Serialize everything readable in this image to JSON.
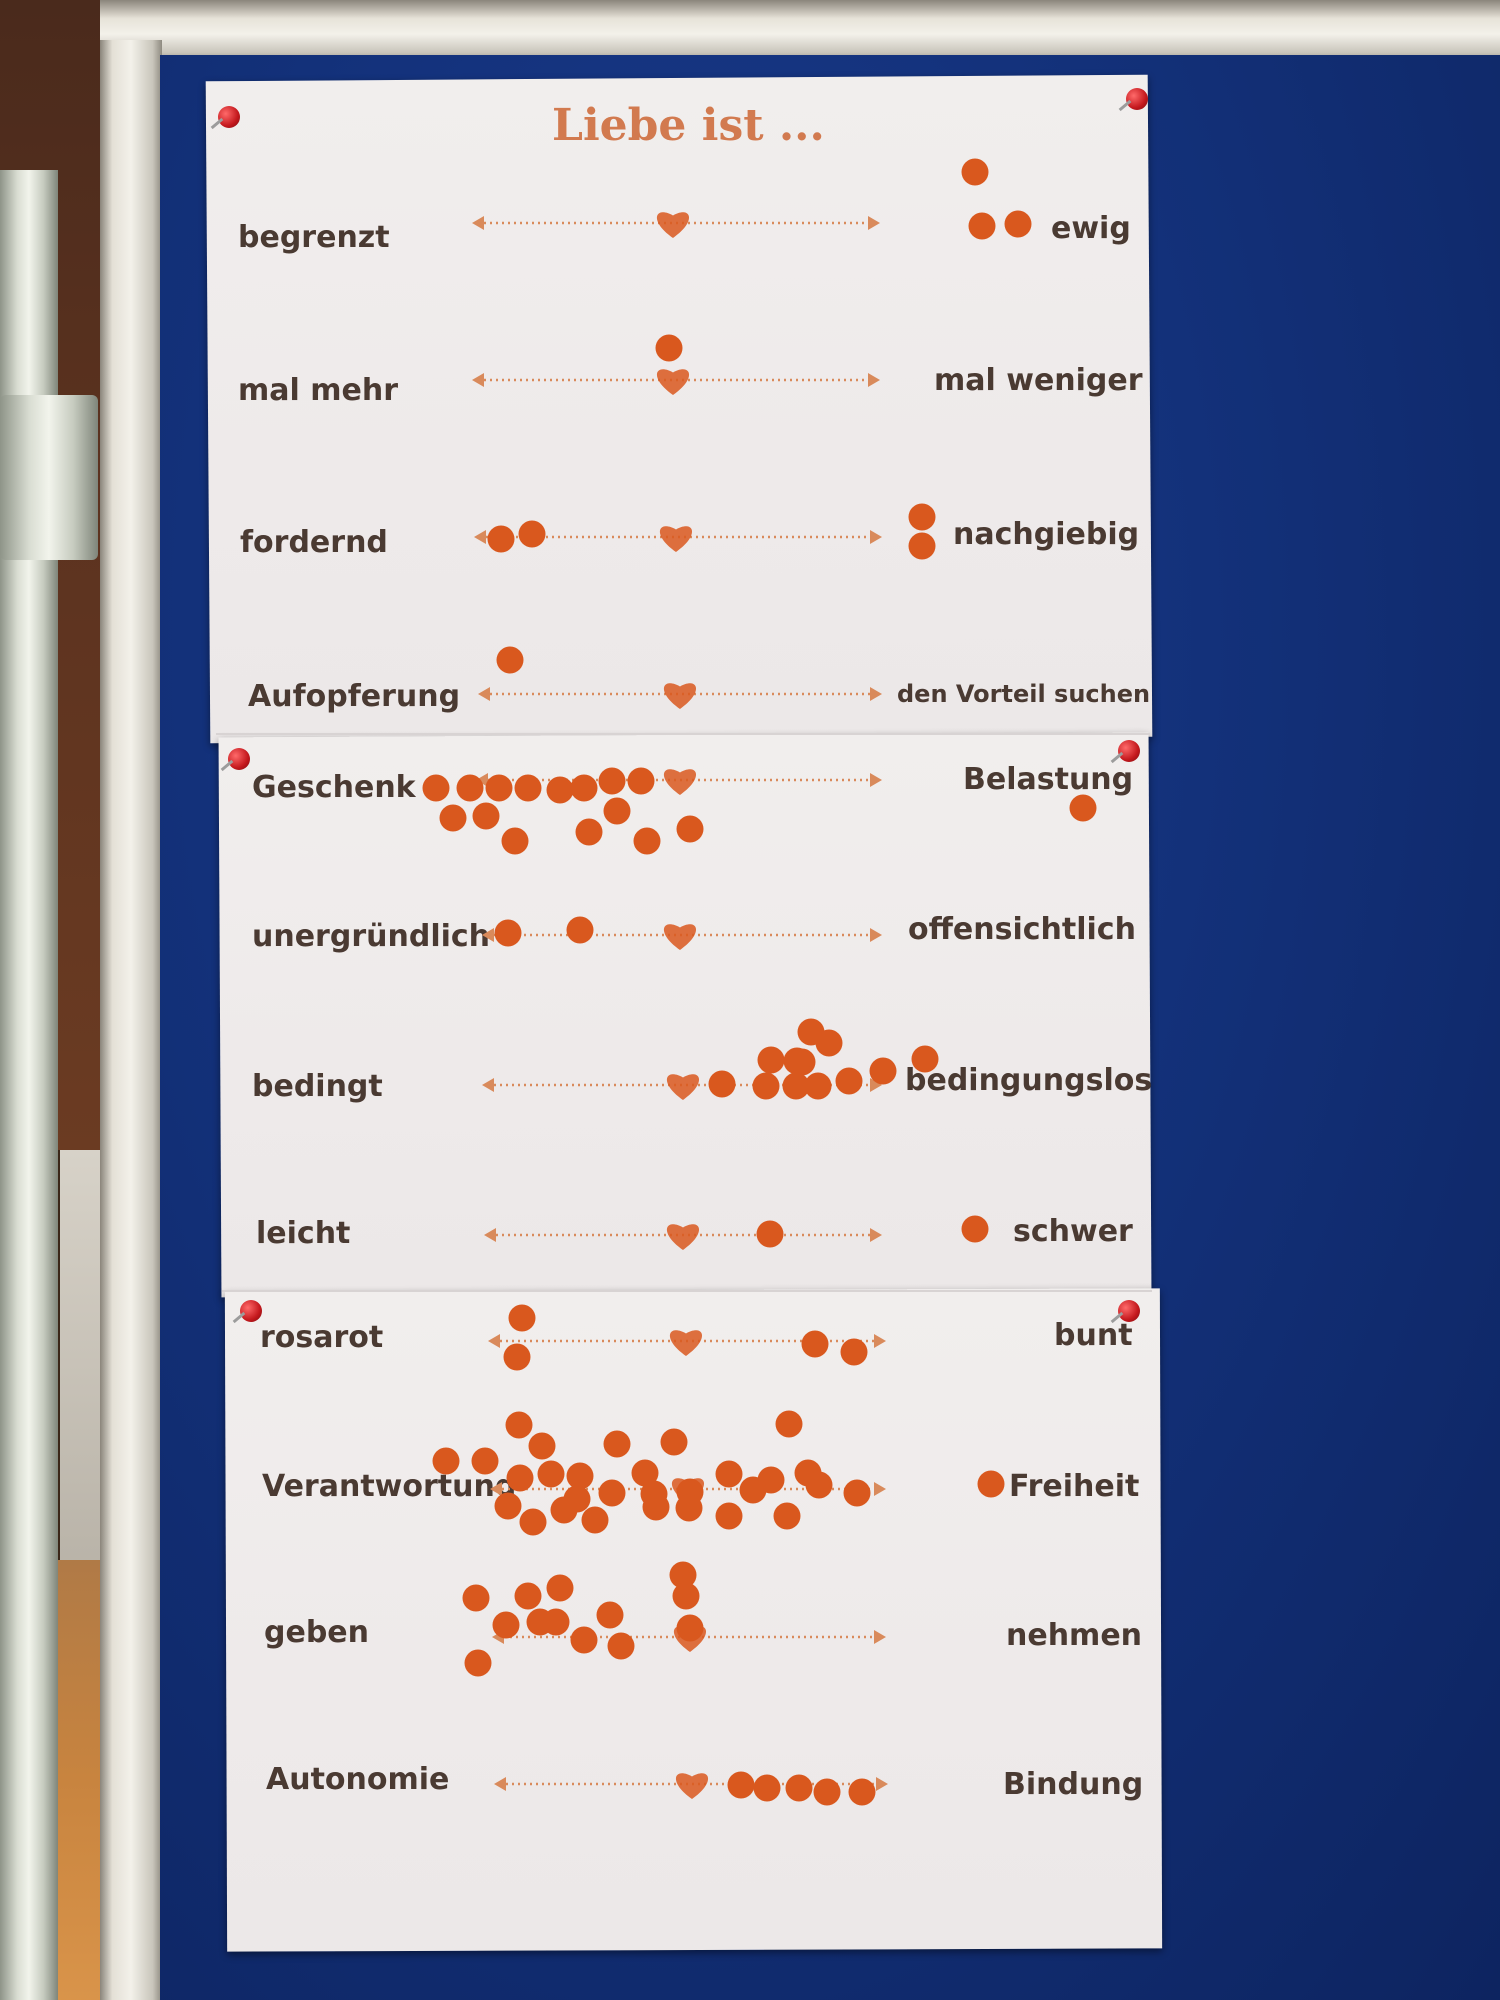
{
  "poster": {
    "title": "Liebe ist ...",
    "colors": {
      "accent": "#d9581e",
      "line": "#d98a5b",
      "text": "#4a3a32",
      "title": "#d27a4f",
      "board": "#13317a"
    },
    "rows": [
      {
        "left": "begrenzt",
        "right": "ewig"
      },
      {
        "left": "mal mehr",
        "right": "mal weniger"
      },
      {
        "left": "fordernd",
        "right": "nachgiebig"
      },
      {
        "left": "Aufopferung",
        "right": "den Vorteil suchen"
      },
      {
        "left": "Geschenk",
        "right": "Belastung"
      },
      {
        "left": "unergründlich",
        "right": "offensichtlich"
      },
      {
        "left": "bedingt",
        "right": "bedingungslos"
      },
      {
        "left": "leicht",
        "right": "schwer"
      },
      {
        "left": "rosarot",
        "right": "bunt"
      },
      {
        "left": "Verantwortung",
        "right": "Freiheit"
      },
      {
        "left": "geben",
        "right": "nehmen"
      },
      {
        "left": "Autonomie",
        "right": "Bindung"
      }
    ]
  },
  "icons": {
    "marker": "heart-icon",
    "vote": "dot-sticker-icon",
    "pin": "push-pin-icon"
  }
}
